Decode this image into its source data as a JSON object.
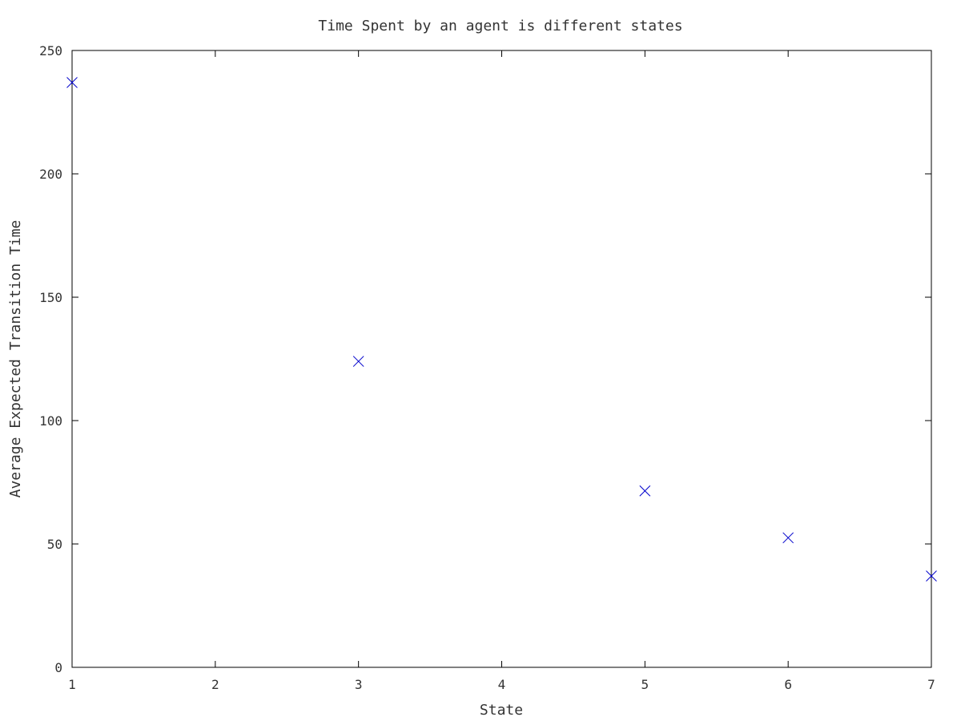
{
  "chart_data": {
    "type": "scatter",
    "title": "Time Spent by an agent is different states",
    "xlabel": "State",
    "ylabel": "Average Expected Transition Time",
    "xlim": [
      1,
      7
    ],
    "ylim": [
      0,
      250
    ],
    "xticks": [
      1,
      2,
      3,
      4,
      5,
      6,
      7
    ],
    "yticks": [
      0,
      50,
      100,
      150,
      200,
      250
    ],
    "grid": false,
    "marker": "x",
    "marker_color": "#0000cc",
    "series": [
      {
        "x": [
          1,
          3,
          5,
          6,
          7
        ],
        "y": [
          237,
          124,
          71.5,
          52.5,
          37
        ]
      }
    ]
  }
}
